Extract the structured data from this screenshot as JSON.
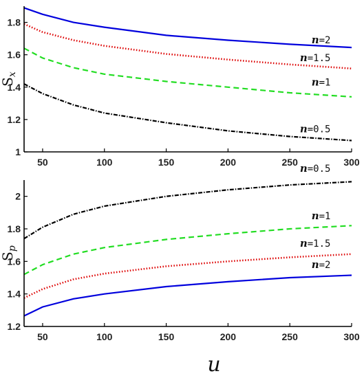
{
  "chart_data": [
    {
      "type": "line",
      "ylabel_main": "S",
      "ylabel_sub": "x",
      "xlim": [
        35,
        300
      ],
      "ylim": [
        1,
        1.9
      ],
      "xticks": [
        "50",
        "100",
        "150",
        "200",
        "250",
        "300"
      ],
      "xtick_values": [
        50,
        100,
        150,
        200,
        250,
        300
      ],
      "yticks": [
        "1",
        "1.2",
        "1.4",
        "1.6",
        "1.8"
      ],
      "ytick_values": [
        1,
        1.2,
        1.4,
        1.6,
        1.8
      ],
      "grid": false,
      "x": [
        35,
        50,
        75,
        100,
        150,
        200,
        250,
        300
      ],
      "series": [
        {
          "name": "n=2",
          "label_n": "n",
          "label_v": "=2",
          "label_anchor_x": 283,
          "label_anchor_y": 1.67,
          "color": "#0000dd",
          "dash": "solid",
          "values": [
            1.89,
            1.85,
            1.8,
            1.77,
            1.72,
            1.69,
            1.665,
            1.645
          ]
        },
        {
          "name": "n=1.5",
          "label_n": "n",
          "label_v": "=1.5",
          "label_anchor_x": 283,
          "label_anchor_y": 1.56,
          "color": "#dd0000",
          "dash": "dotted",
          "values": [
            1.79,
            1.74,
            1.69,
            1.655,
            1.605,
            1.57,
            1.54,
            1.515
          ]
        },
        {
          "name": "n=1",
          "label_n": "n",
          "label_v": "=1",
          "label_anchor_x": 283,
          "label_anchor_y": 1.41,
          "color": "#22dd22",
          "dash": "dashed",
          "values": [
            1.64,
            1.58,
            1.52,
            1.48,
            1.435,
            1.4,
            1.365,
            1.34
          ]
        },
        {
          "name": "n=0.5",
          "label_n": "n",
          "label_v": "=0.5",
          "label_anchor_x": 283,
          "label_anchor_y": 1.12,
          "color": "#000000",
          "dash": "dashdot",
          "values": [
            1.42,
            1.36,
            1.29,
            1.24,
            1.18,
            1.13,
            1.095,
            1.07
          ]
        }
      ]
    },
    {
      "type": "line",
      "ylabel_main": "S",
      "ylabel_sub": "p",
      "xlabel": "u",
      "xlim": [
        35,
        300
      ],
      "ylim": [
        1.2,
        2.1
      ],
      "xticks": [
        "50",
        "100",
        "150",
        "200",
        "250",
        "300"
      ],
      "xtick_values": [
        50,
        100,
        150,
        200,
        250,
        300
      ],
      "yticks": [
        "1.2",
        "1.4",
        "1.6",
        "1.8",
        "2"
      ],
      "ytick_values": [
        1.2,
        1.4,
        1.6,
        1.8,
        2.0
      ],
      "grid": false,
      "x": [
        35,
        50,
        75,
        100,
        150,
        200,
        250,
        300
      ],
      "series": [
        {
          "name": "n=0.5",
          "label_n": "n",
          "label_v": "=0.5",
          "label_anchor_x": 283,
          "label_anchor_y": 2.15,
          "color": "#000000",
          "dash": "dashdot",
          "values": [
            1.74,
            1.81,
            1.89,
            1.94,
            2.0,
            2.04,
            2.07,
            2.09
          ]
        },
        {
          "name": "n=1",
          "label_n": "n",
          "label_v": "=1",
          "label_anchor_x": 283,
          "label_anchor_y": 1.86,
          "color": "#22dd22",
          "dash": "dashed",
          "values": [
            1.52,
            1.58,
            1.645,
            1.685,
            1.735,
            1.77,
            1.8,
            1.82
          ]
        },
        {
          "name": "n=1.5",
          "label_n": "n",
          "label_v": "=1.5",
          "label_anchor_x": 283,
          "label_anchor_y": 1.69,
          "color": "#dd0000",
          "dash": "dotted",
          "values": [
            1.375,
            1.43,
            1.49,
            1.525,
            1.57,
            1.6,
            1.625,
            1.645
          ]
        },
        {
          "name": "n=2",
          "label_n": "n",
          "label_v": "=2",
          "label_anchor_x": 283,
          "label_anchor_y": 1.56,
          "color": "#0000dd",
          "dash": "solid",
          "values": [
            1.265,
            1.32,
            1.37,
            1.4,
            1.445,
            1.475,
            1.5,
            1.515
          ]
        }
      ]
    }
  ]
}
